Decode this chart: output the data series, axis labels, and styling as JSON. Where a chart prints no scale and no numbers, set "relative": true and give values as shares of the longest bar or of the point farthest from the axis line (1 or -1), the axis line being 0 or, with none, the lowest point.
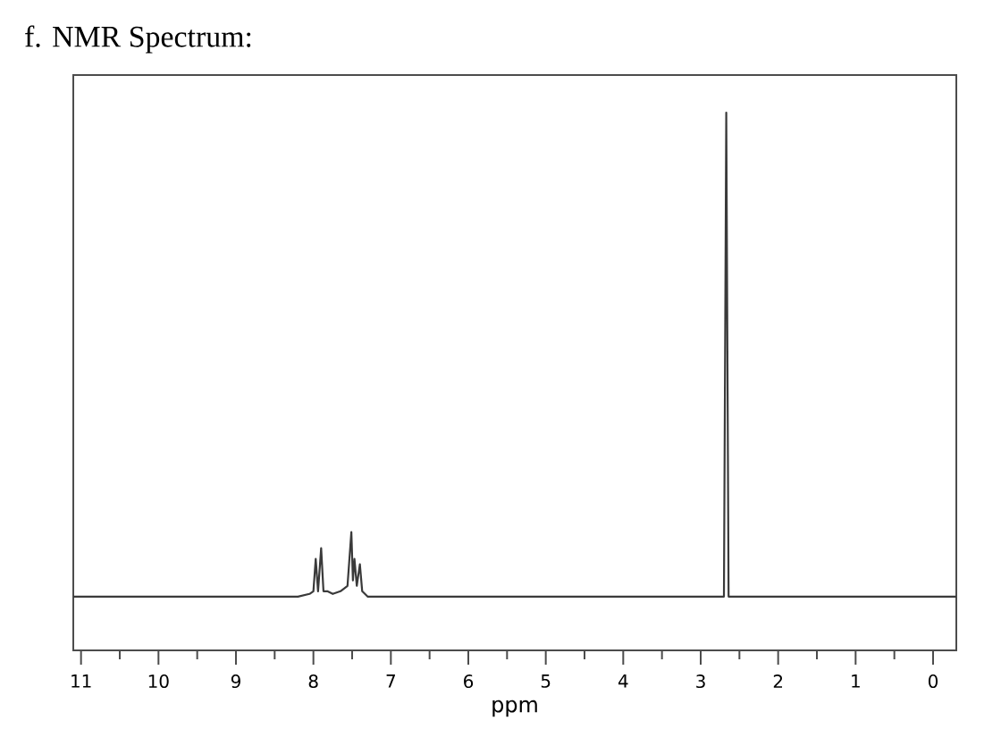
{
  "chart_data": {
    "type": "line",
    "title": "f. NMR Spectrum:",
    "xlabel": "ppm",
    "relative": true,
    "x": [
      11.1,
      8.2,
      8.05,
      8.0,
      7.97,
      7.94,
      7.9,
      7.87,
      7.82,
      7.75,
      7.65,
      7.56,
      7.51,
      7.49,
      7.47,
      7.44,
      7.4,
      7.37,
      7.3,
      2.7,
      2.67,
      2.64,
      -0.3
    ],
    "values": [
      0.1,
      0.1,
      0.105,
      0.11,
      0.17,
      0.11,
      0.19,
      0.11,
      0.11,
      0.105,
      0.11,
      0.12,
      0.22,
      0.13,
      0.17,
      0.12,
      0.16,
      0.11,
      0.1,
      0.1,
      1.0,
      0.1,
      0.1
    ],
    "color": "#3a3a3a",
    "xlim": [
      11.1,
      -0.3
    ],
    "xticks": [
      11,
      {
        "value": 10.5,
        "label": null
      },
      10,
      {
        "value": 9.5,
        "label": null
      },
      9,
      {
        "value": 8.5,
        "label": null
      },
      8,
      {
        "value": 7.5,
        "label": null
      },
      7,
      {
        "value": 6.5,
        "label": null
      },
      6,
      {
        "value": 5.5,
        "label": null
      },
      5,
      {
        "value": 4.5,
        "label": null
      },
      4,
      {
        "value": 3.5,
        "label": null
      },
      3,
      {
        "value": 2.5,
        "label": null
      },
      2,
      {
        "value": 1.5,
        "label": null
      },
      1,
      {
        "value": 0.5,
        "label": null
      },
      0
    ],
    "tick_labels": "x"
  }
}
